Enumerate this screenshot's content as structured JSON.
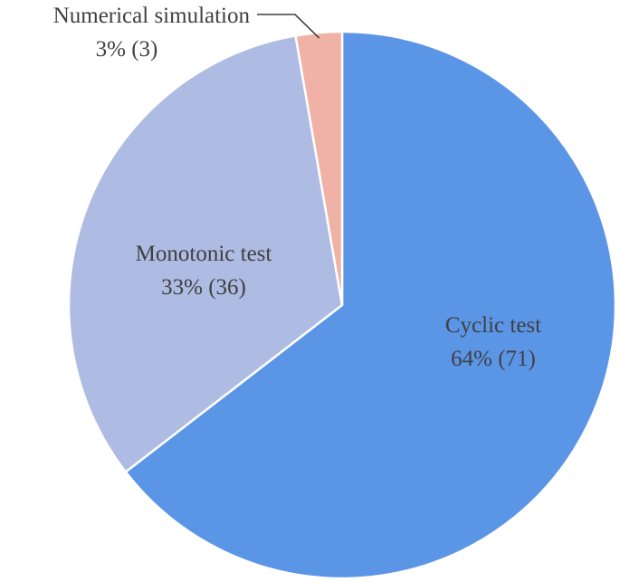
{
  "chart_data": {
    "type": "pie",
    "title": "",
    "slices": [
      {
        "name": "Cyclic test",
        "value": 71,
        "percent_label": "64% (71)",
        "color": "#5b95e6"
      },
      {
        "name": "Monotonic test",
        "value": 36,
        "percent_label": "33% (36)",
        "color": "#aebbe2"
      },
      {
        "name": "Numerical simulation",
        "value": 3,
        "percent_label": "3% (3)",
        "color": "#f0b2a6"
      }
    ],
    "start": "12 o'clock",
    "direction": "clockwise",
    "slice_border_color": "#ffffff",
    "leader_line_color": "#404040"
  }
}
